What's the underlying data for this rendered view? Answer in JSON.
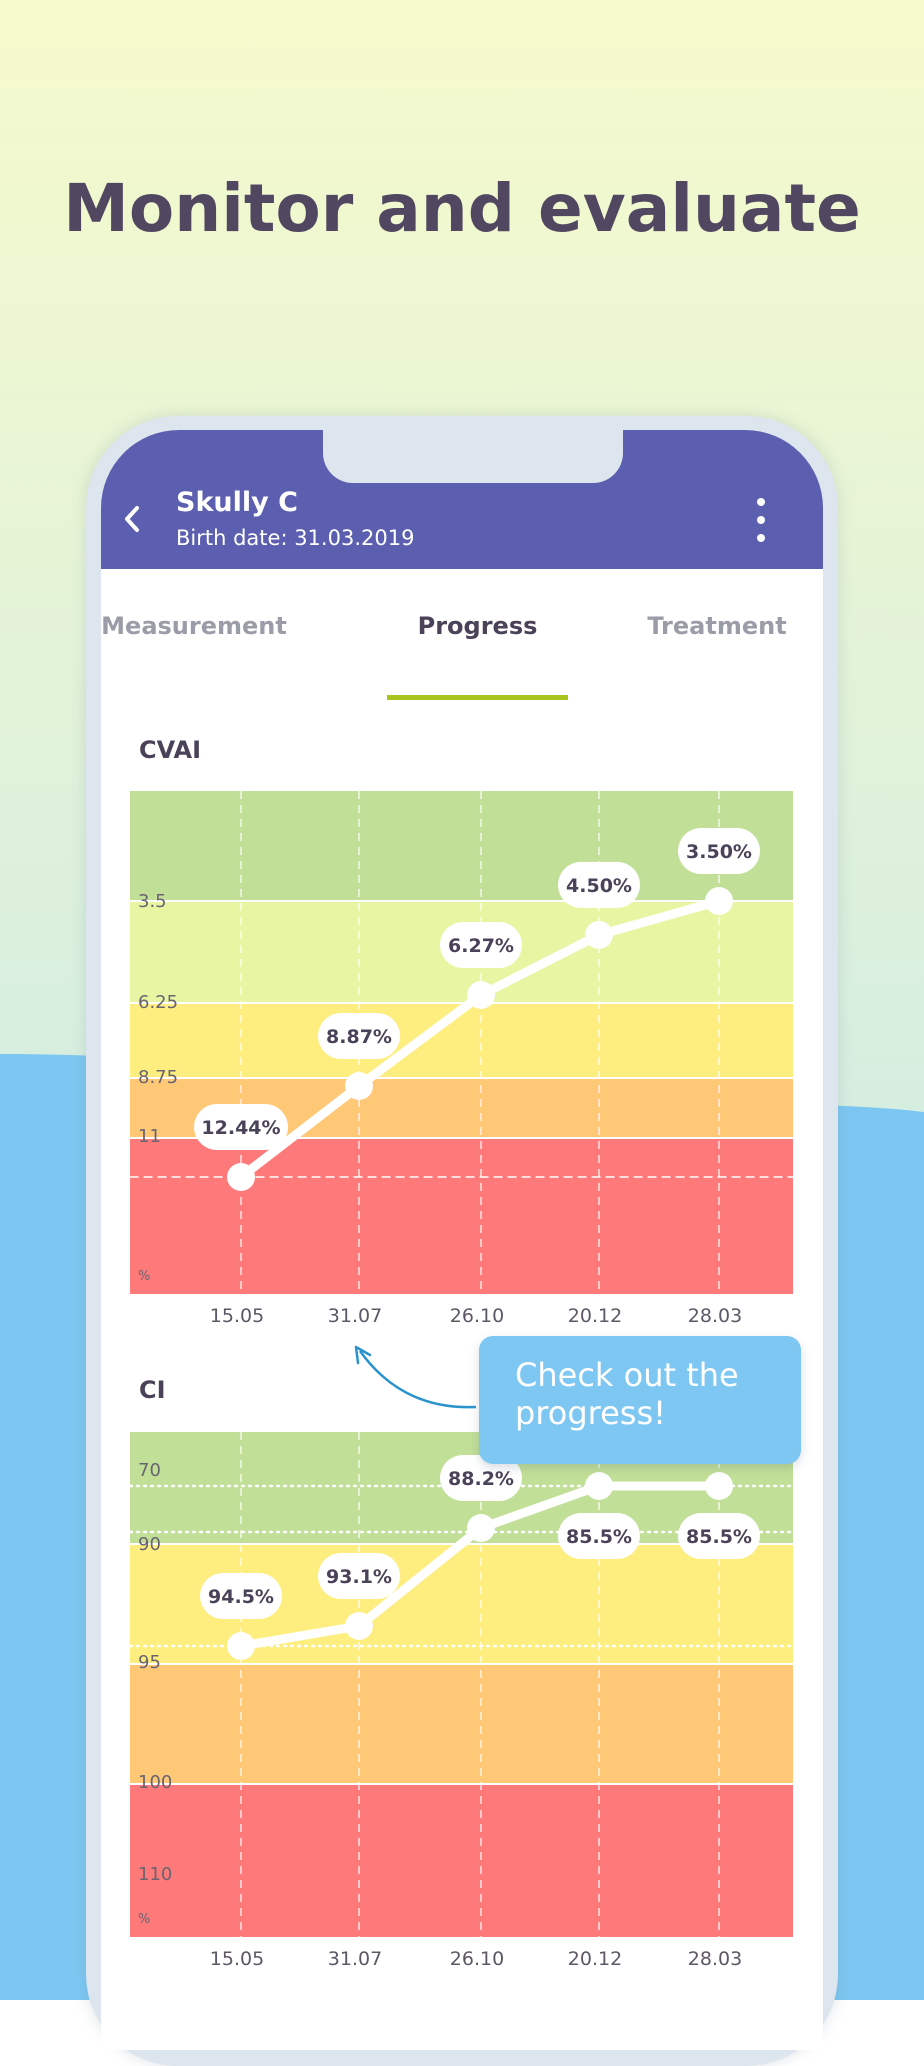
{
  "headline": "Monitor and evaluate",
  "colors": {
    "bg_top": "#f6facc",
    "bg_mid": "#d4eede",
    "bg_blue": "#7cc7f2",
    "appbar": "#5c5fb0",
    "tab_accent": "#a9c41c",
    "headline": "#524761"
  },
  "patient": {
    "name": "Skully C",
    "birth": "Birth date: 31.03.2019"
  },
  "icons": {
    "back": "chevron-left-icon",
    "menu": "more-vertical-icon"
  },
  "tabs": [
    {
      "label": "Measurement",
      "active": false
    },
    {
      "label": "Progress",
      "active": true
    },
    {
      "label": "Treatment",
      "active": false
    }
  ],
  "callout": "Check out the progress!",
  "chart_data": [
    {
      "type": "line",
      "title": "CVAI",
      "unit": "%",
      "x": [
        "15.05",
        "31.07",
        "26.10",
        "20.12",
        "28.03"
      ],
      "values": [
        12.44,
        8.87,
        6.27,
        4.5,
        3.5
      ],
      "value_labels": [
        "12.44%",
        "8.87%",
        "6.27%",
        "4.50%",
        "3.50%"
      ],
      "bands": [
        {
          "label": "",
          "color": "#c2df97"
        },
        {
          "label": "3.5",
          "color": "#e8f5a3"
        },
        {
          "label": "6.25",
          "color": "#fdee7f"
        },
        {
          "label": "8.75",
          "color": "#fec876"
        },
        {
          "label": "11",
          "color": "#fe7a7a"
        }
      ]
    },
    {
      "type": "line",
      "title": "CI",
      "unit": "%",
      "x": [
        "15.05",
        "31.07",
        "26.10",
        "20.12",
        "28.03"
      ],
      "values": [
        94.5,
        93.1,
        88.2,
        85.5,
        85.5
      ],
      "value_labels": [
        "94.5%",
        "93.1%",
        "88.2%",
        "85.5%",
        "85.5%"
      ],
      "bands": [
        {
          "label": "70",
          "color": "#c2df97"
        },
        {
          "label": "90",
          "color": "#fdee7f"
        },
        {
          "label": "95",
          "color": "#fec876"
        },
        {
          "label": "100",
          "color": "#fe7a7a"
        },
        {
          "label": "110",
          "color": ""
        }
      ]
    }
  ]
}
